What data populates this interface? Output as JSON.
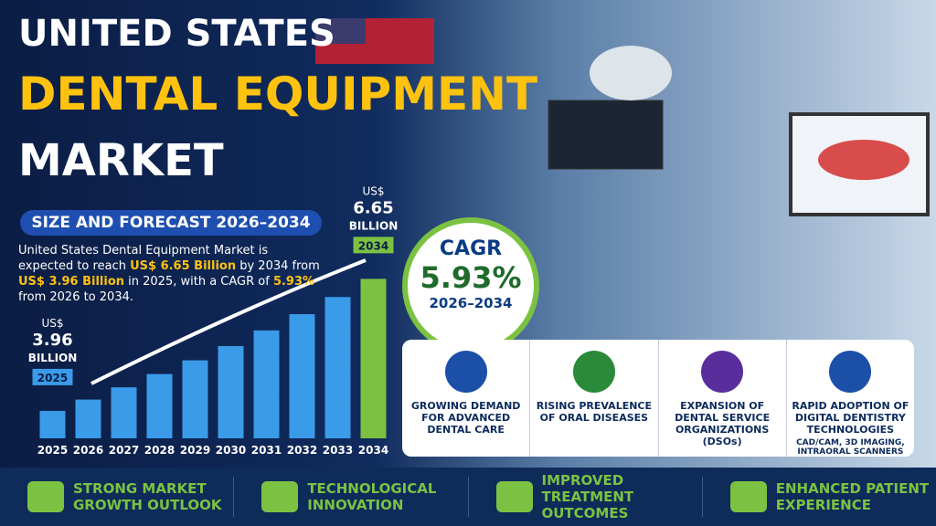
{
  "title_lines": [
    "UNITED STATES",
    "DENTAL EQUIPMENT",
    "MARKET"
  ],
  "subtitle": "SIZE AND FORECAST 2026–2034",
  "description": [
    "United States Dental Equipment Market is expected to reach ",
    "US$ 6.65 Billion",
    " by 2034 from ",
    "US$ 3.96 Billion",
    " in 2025, with a CAGR of ",
    "5.93%",
    " from 2026 to 2034."
  ],
  "cagr": {
    "label": "CAGR",
    "value": "5.93%",
    "period": "2026–2034"
  },
  "drivers": [
    {
      "title": "GROWING DEMAND FOR ADVANCED DENTAL CARE"
    },
    {
      "title": "RISING PREVALENCE OF ORAL DISEASES"
    },
    {
      "title": "EXPANSION OF DENTAL SERVICE ORGANIZATIONS (DSOs)"
    },
    {
      "title": "RAPID ADOPTION OF DIGITAL DENTISTRY TECHNOLOGIES",
      "detail": "CAD/CAM, 3D IMAGING, INTRAORAL SCANNERS"
    }
  ],
  "highlights": [
    "STRONG MARKET GROWTH OUTLOOK",
    "TECHNOLOGICAL INNOVATION",
    "IMPROVED TREATMENT OUTCOMES",
    "ENHANCED PATIENT EXPERIENCE"
  ],
  "chart_data": {
    "type": "bar",
    "categories": [
      "2025",
      "2026",
      "2027",
      "2028",
      "2029",
      "2030",
      "2031",
      "2032",
      "2033",
      "2034"
    ],
    "values": [
      3.96,
      4.19,
      4.44,
      4.71,
      4.99,
      5.28,
      5.6,
      5.93,
      6.28,
      6.65
    ],
    "value_labels": [
      "3.96",
      null,
      null,
      null,
      null,
      null,
      null,
      null,
      null,
      "6.65"
    ],
    "value_prefix": "US$",
    "value_suffix": "BILLION",
    "colors": [
      "#3a9be8",
      "#3a9be8",
      "#3a9be8",
      "#3a9be8",
      "#3a9be8",
      "#3a9be8",
      "#3a9be8",
      "#3a9be8",
      "#3a9be8",
      "#7cc242"
    ],
    "ylim": [
      3.4,
      6.75
    ]
  }
}
